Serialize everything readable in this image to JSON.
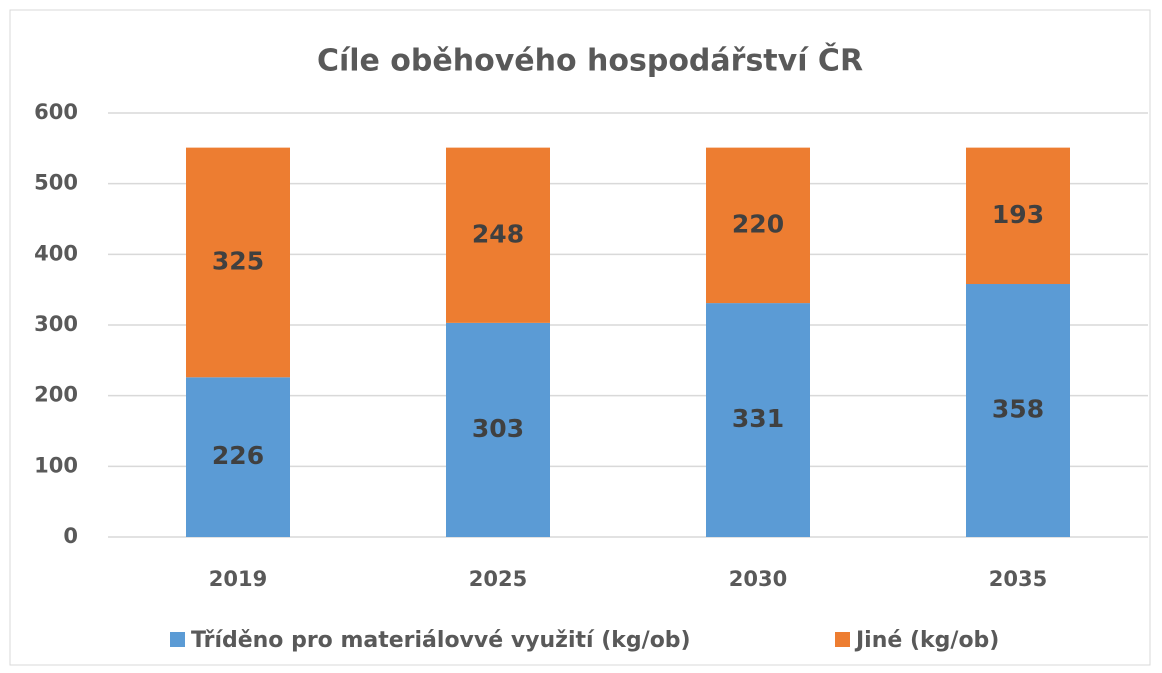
{
  "chart_data": {
    "type": "stacked_bar",
    "title": "Cíle oběhového hospodářství ČR",
    "categories": [
      "2019",
      "2025",
      "2030",
      "2035"
    ],
    "series": [
      {
        "name": "Tříděno pro materiálovvé využití (kg/ob)",
        "color": "#5b9bd5",
        "values": [
          226,
          303,
          331,
          358
        ]
      },
      {
        "name": "Jiné (kg/ob)",
        "color": "#ed7d31",
        "values": [
          325,
          248,
          220,
          193
        ]
      }
    ],
    "ylim": [
      0,
      600
    ],
    "yticks": [
      0,
      100,
      200,
      300,
      400,
      500,
      600
    ],
    "grid": true,
    "legend": "bottom"
  }
}
